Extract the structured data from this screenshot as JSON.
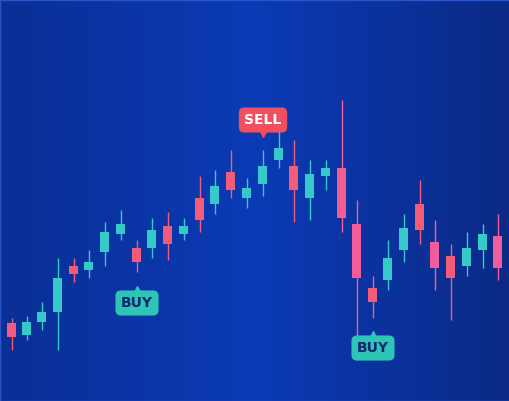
{
  "chart_data": {
    "type": "candlestick",
    "x": [
      12,
      27,
      42,
      58,
      74,
      89,
      105,
      121,
      137,
      152,
      168,
      184,
      200,
      215,
      231,
      247,
      263,
      279,
      294,
      310,
      326,
      342,
      357,
      373,
      388,
      404,
      420,
      435,
      451,
      467,
      483,
      498
    ],
    "open": [
      78,
      66,
      79,
      89,
      135,
      131,
      149,
      167,
      153,
      153,
      175,
      167,
      203,
      197,
      229,
      203,
      217,
      241,
      235,
      203,
      225,
      233,
      177,
      113,
      121,
      151,
      197,
      159,
      145,
      135,
      151,
      165
    ],
    "high": [
      83,
      85,
      99,
      143,
      143,
      151,
      179,
      191,
      161,
      183,
      189,
      183,
      225,
      231,
      251,
      223,
      251,
      271,
      261,
      241,
      241,
      301,
      201,
      125,
      161,
      187,
      221,
      181,
      157,
      169,
      177,
      187
    ],
    "low": [
      51,
      61,
      71,
      51,
      119,
      123,
      135,
      161,
      129,
      143,
      141,
      161,
      169,
      187,
      203,
      193,
      205,
      233,
      179,
      181,
      211,
      169,
      41,
      83,
      111,
      139,
      157,
      111,
      81,
      125,
      133,
      121
    ],
    "close": [
      64,
      79,
      89,
      123,
      127,
      139,
      169,
      177,
      139,
      171,
      157,
      175,
      181,
      215,
      211,
      213,
      235,
      253,
      211,
      227,
      233,
      183,
      123,
      99,
      143,
      173,
      171,
      133,
      123,
      153,
      167,
      133
    ],
    "colors": [
      "#f25c78",
      "#35c9c9",
      "#35c9c9",
      "#35c9c9",
      "#f25c78",
      "#35c9c9",
      "#35c9c9",
      "#35c9c9",
      "#f25c78",
      "#35c9c9",
      "#f25c78",
      "#35c9c9",
      "#f25c78",
      "#35c9c9",
      "#f25c78",
      "#35c9c9",
      "#35c9c9",
      "#35c9c9",
      "#f25c78",
      "#35c9c9",
      "#35c9c9",
      "#f45d8f",
      "#f25c9a",
      "#f25c78",
      "#35c9c9",
      "#35c9c9",
      "#f25c78",
      "#f25c9a",
      "#f25c78",
      "#35c9c9",
      "#35c9c9",
      "#f25c9a"
    ],
    "xlim": [
      0,
      510
    ],
    "ylim": [
      0,
      401
    ],
    "xticks": [],
    "yticks": [],
    "tick_labels": false,
    "annotations": [
      {
        "text": "SELL",
        "x": 263,
        "y": 281,
        "color": "#f04f5f"
      },
      {
        "text": "BUY",
        "x": 137,
        "y": 98,
        "color": "#2ec4b6"
      },
      {
        "text": "BUY",
        "x": 373,
        "y": 53,
        "color": "#2ec4b6"
      }
    ]
  }
}
